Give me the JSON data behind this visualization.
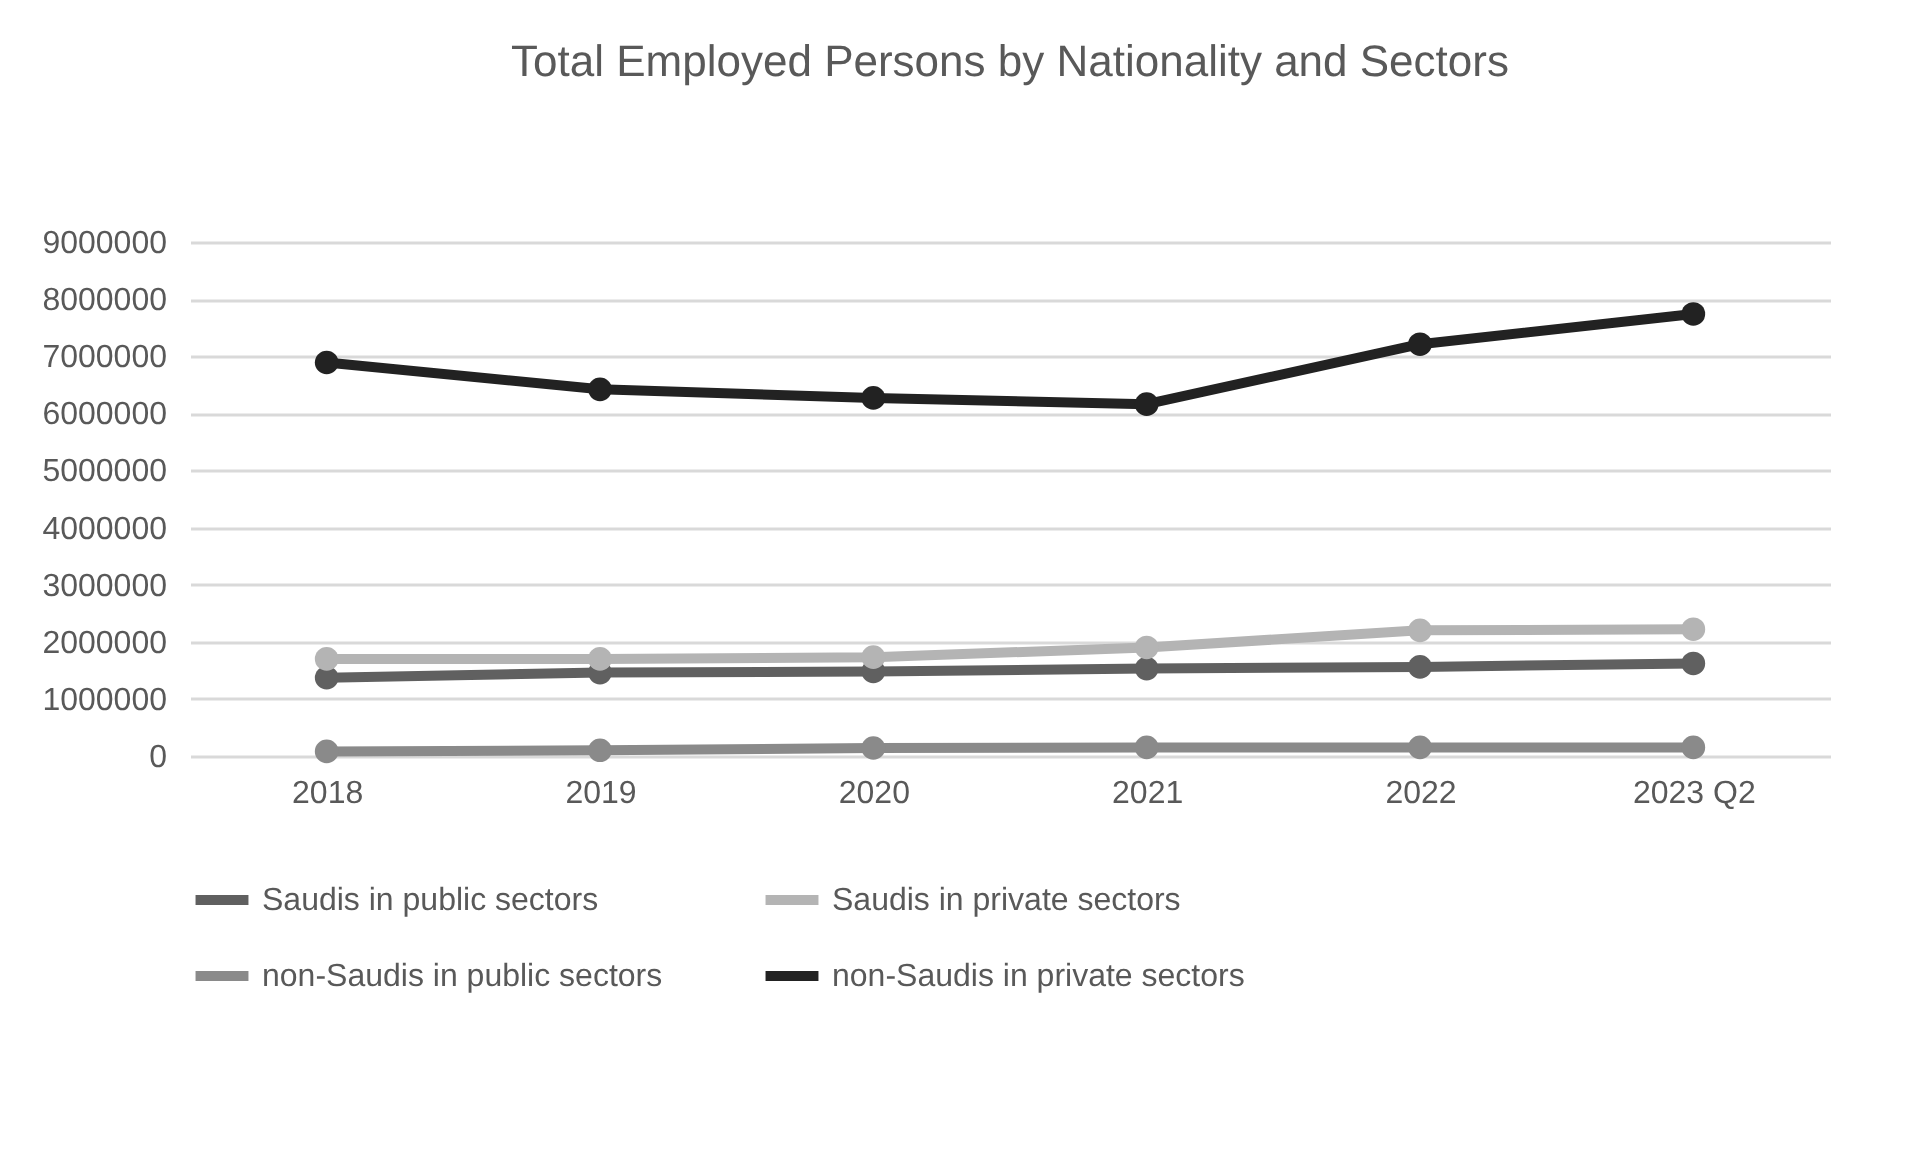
{
  "chart_data": {
    "type": "line",
    "title": "Total Employed Persons by Nationality and Sectors",
    "categories": [
      "2018",
      "2019",
      "2020",
      "2021",
      "2022",
      "2023 Q2"
    ],
    "series": [
      {
        "name": "Saudis in public sectors",
        "color": "#606060",
        "values": [
          1370000,
          1460000,
          1480000,
          1530000,
          1560000,
          1620000
        ]
      },
      {
        "name": "Saudis in private sectors",
        "color": "#b4b4b4",
        "values": [
          1700000,
          1700000,
          1730000,
          1900000,
          2200000,
          2220000
        ]
      },
      {
        "name": "non-Saudis in public sectors",
        "color": "#8a8a8a",
        "values": [
          80000,
          100000,
          140000,
          150000,
          150000,
          150000
        ]
      },
      {
        "name": "non-Saudis in private sectors",
        "color": "#222222",
        "values": [
          6890000,
          6420000,
          6270000,
          6160000,
          7210000,
          7740000
        ]
      }
    ],
    "ylim": [
      0,
      9000000
    ],
    "yticks": [
      0,
      1000000,
      2000000,
      3000000,
      4000000,
      5000000,
      6000000,
      7000000,
      8000000,
      9000000
    ],
    "grid": "y",
    "legend": "bottom",
    "marker": "circle",
    "line_style": "solid"
  }
}
